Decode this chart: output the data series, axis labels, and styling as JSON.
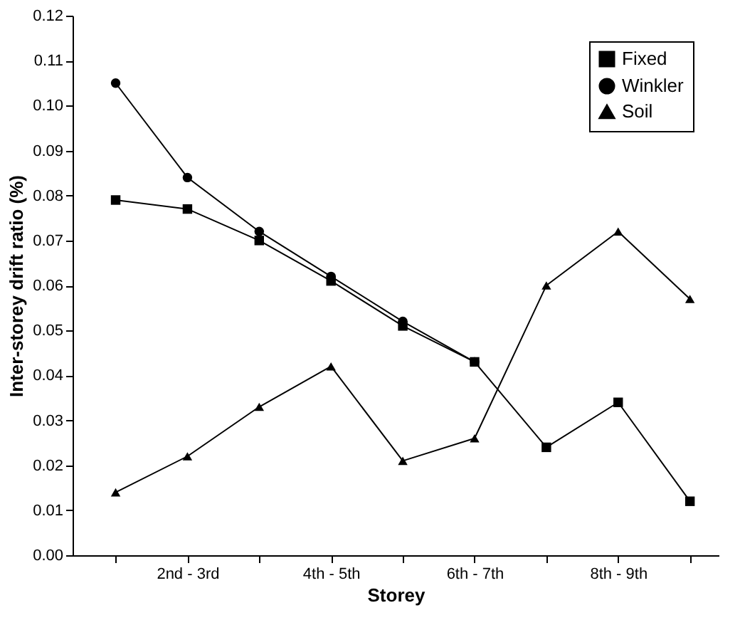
{
  "chart_data": {
    "type": "line",
    "xlabel": "Storey",
    "ylabel": "Inter-storey drift ratio (%)",
    "categories": [
      null,
      "2nd - 3rd",
      null,
      "4th - 5th",
      null,
      "6th - 7th",
      null,
      "8th - 9th",
      null
    ],
    "ylim": [
      0,
      0.12
    ],
    "yticks": [
      {
        "value": 0,
        "label": "0.00"
      },
      {
        "value": 0.01,
        "label": "0.01"
      },
      {
        "value": 0.02,
        "label": "0.02"
      },
      {
        "value": 0.03,
        "label": "0.03"
      },
      {
        "value": 0.04,
        "label": "0.04"
      },
      {
        "value": 0.05,
        "label": "0.05"
      },
      {
        "value": 0.06,
        "label": "0.06"
      },
      {
        "value": 0.07,
        "label": "0.07"
      },
      {
        "value": 0.08,
        "label": "0.08"
      },
      {
        "value": 0.09,
        "label": "0.09"
      },
      {
        "value": 0.1,
        "label": "0.10"
      },
      {
        "value": 0.11,
        "label": "0.11"
      },
      {
        "value": 0.12,
        "label": "0.12"
      }
    ],
    "grid": false,
    "legend": "top right",
    "line_style": "solid",
    "series": [
      {
        "name": "Fixed",
        "color": "#000000",
        "marker": "square",
        "values": [
          0.079,
          0.077,
          0.07,
          0.061,
          0.051,
          0.043,
          0.024,
          0.034,
          0.012
        ]
      },
      {
        "name": "Winkler",
        "color": "#000000",
        "marker": "circle",
        "values": [
          0.105,
          0.084,
          0.072,
          0.062,
          0.052,
          0.043,
          null,
          null,
          null
        ]
      },
      {
        "name": "Soil",
        "color": "#000000",
        "marker": "triangle",
        "values": [
          0.014,
          0.022,
          0.033,
          0.042,
          0.021,
          0.026,
          0.06,
          0.072,
          0.057
        ]
      }
    ]
  }
}
